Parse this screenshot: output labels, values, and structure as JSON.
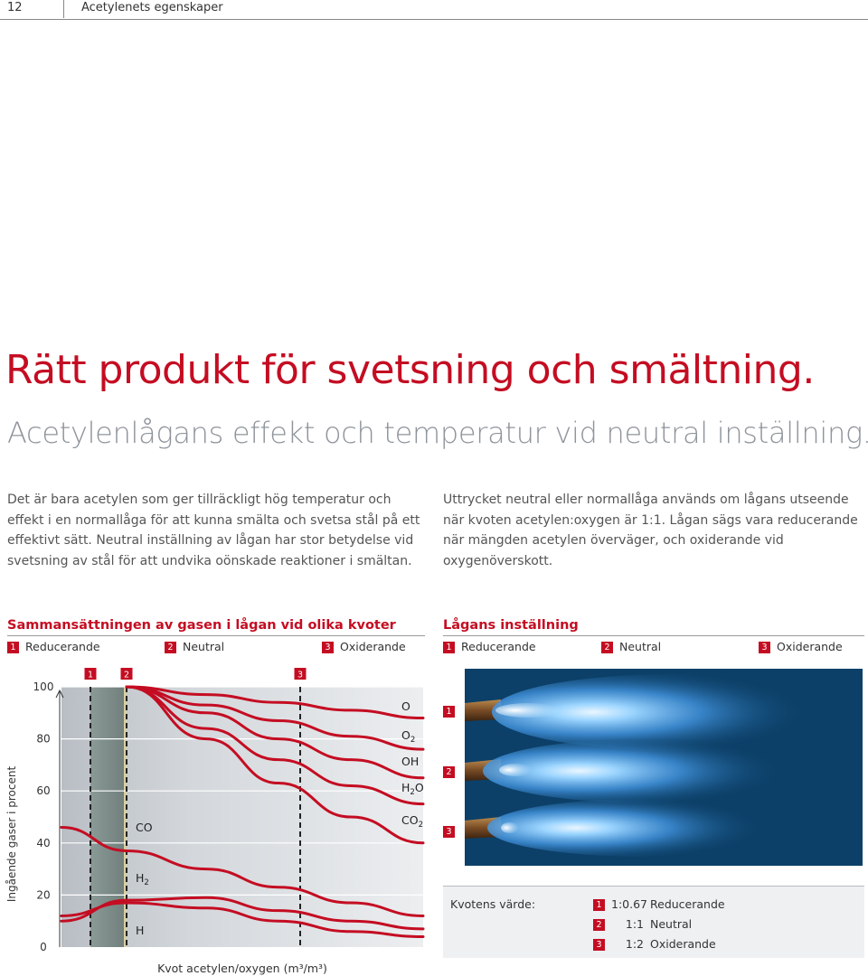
{
  "header": {
    "page_number": "12",
    "running_title": "Acetylenets egenskaper"
  },
  "title": "Rätt produkt för svetsning och smältning.",
  "subtitle": "Acetylenlågans effekt och temperatur vid neutral inställning.",
  "paragraph_left": "Det är bara acetylen som ger tillräckligt hög temperatur och effekt i en normallåga för att kunna smälta och svetsa stål på ett effektivt sätt. Neutral inställning av lågan har stor betydelse vid svetsning av stål för att undvika oönskade reaktioner i smältan.",
  "paragraph_right": "Uttrycket neutral eller normallåga används om lågans utseende när kvoten acetylen:oxygen är 1:1. Lågan sägs vara reducerande när mängden acetylen överväger, och oxiderande vid oxygenöverskott.",
  "section_left": {
    "title": "Sammansättningen av gasen i lågan vid olika kvoter",
    "legend": [
      {
        "num": "1",
        "label": "Reducerande"
      },
      {
        "num": "2",
        "label": "Neutral"
      },
      {
        "num": "3",
        "label": "Oxiderande"
      }
    ]
  },
  "section_right": {
    "title": "Lågans inställning",
    "legend": [
      {
        "num": "1",
        "label": "Reducerande"
      },
      {
        "num": "2",
        "label": "Neutral"
      },
      {
        "num": "3",
        "label": "Oxiderande"
      }
    ],
    "flame_labels": [
      "1",
      "2",
      "3"
    ]
  },
  "ratio_box": {
    "label": "Kvotens värde:",
    "rows": [
      {
        "num": "1",
        "ratio": "1:0.67",
        "label": "Reducerande"
      },
      {
        "num": "2",
        "ratio": "1:1",
        "label": "Neutral"
      },
      {
        "num": "3",
        "ratio": "1:2",
        "label": "Oxiderande"
      }
    ]
  },
  "chart_data": {
    "type": "line",
    "title": "Sammansättningen av gasen i lågan vid olika kvoter",
    "xlabel": "Kvot acetylen/oxygen (m³/m³)",
    "ylabel": "Ingående gaser i procent",
    "yticks": [
      0,
      20,
      40,
      60,
      80,
      100
    ],
    "ylim": [
      0,
      100
    ],
    "xlim": [
      0,
      1
    ],
    "markers": [
      {
        "label": "1",
        "x": 0.08
      },
      {
        "label": "2",
        "x": 0.18
      },
      {
        "label": "3",
        "x": 0.66
      }
    ],
    "series": [
      {
        "name": "O",
        "x": [
          0.18,
          0.4,
          0.6,
          0.8,
          1.0
        ],
        "y": [
          100,
          97,
          94,
          91,
          88
        ]
      },
      {
        "name": "O2",
        "x": [
          0.18,
          0.4,
          0.6,
          0.8,
          1.0
        ],
        "y": [
          100,
          93,
          87,
          81,
          76
        ]
      },
      {
        "name": "OH",
        "x": [
          0.18,
          0.4,
          0.6,
          0.8,
          1.0
        ],
        "y": [
          100,
          90,
          80,
          72,
          65
        ]
      },
      {
        "name": "H2O",
        "x": [
          0.18,
          0.4,
          0.6,
          0.8,
          1.0
        ],
        "y": [
          100,
          84,
          72,
          62,
          55
        ]
      },
      {
        "name": "CO2",
        "x": [
          0.18,
          0.4,
          0.6,
          0.8,
          1.0
        ],
        "y": [
          100,
          80,
          63,
          50,
          40
        ]
      },
      {
        "name": "CO",
        "x": [
          0.0,
          0.18,
          0.4,
          0.6,
          0.8,
          1.0
        ],
        "y": [
          46,
          37,
          30,
          23,
          17,
          12
        ]
      },
      {
        "name": "H2",
        "x": [
          0.0,
          0.18,
          0.4,
          0.6,
          0.8,
          1.0
        ],
        "y": [
          10,
          18,
          19,
          14,
          10,
          7
        ]
      },
      {
        "name": "H",
        "x": [
          0.0,
          0.18,
          0.4,
          0.6,
          0.8,
          1.0
        ],
        "y": [
          12,
          17,
          15,
          10,
          6,
          4
        ]
      }
    ],
    "series_labels": [
      {
        "text": "O",
        "sub": ""
      },
      {
        "text": "O",
        "sub": "2"
      },
      {
        "text": "OH",
        "sub": ""
      },
      {
        "text": "H",
        "sub": "2",
        "tail": "O"
      },
      {
        "text": "CO",
        "sub": "2"
      },
      {
        "text": "CO",
        "sub": ""
      },
      {
        "text": "H",
        "sub": "2"
      },
      {
        "text": "H",
        "sub": ""
      }
    ]
  },
  "colors": {
    "accent": "#c40d22",
    "gray_text": "#8e949b",
    "flame_bg": "#0c4068"
  }
}
